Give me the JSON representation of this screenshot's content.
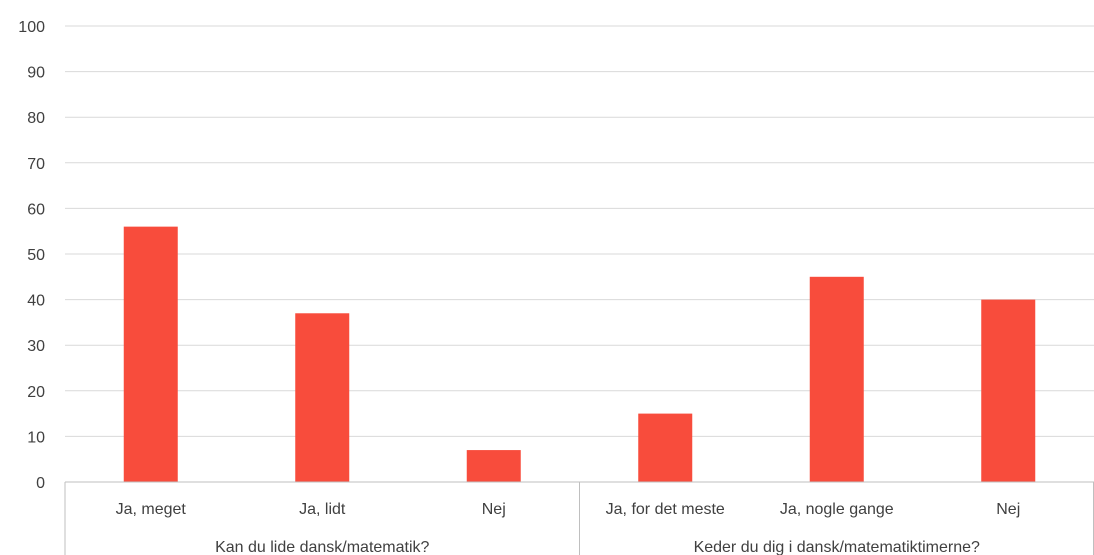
{
  "chart_data": {
    "type": "bar",
    "ylim": [
      0,
      100
    ],
    "yticks": [
      0,
      10,
      20,
      30,
      40,
      50,
      60,
      70,
      80,
      90,
      100
    ],
    "grid": true,
    "bar_color": "#f84c3c",
    "groups": [
      {
        "label": "Kan du lide dansk/matematik?",
        "categories": [
          "Ja, meget",
          "Ja, lidt",
          "Nej"
        ],
        "values": [
          56,
          37,
          7
        ]
      },
      {
        "label": "Keder du dig i dansk/matematiktimerne?",
        "categories": [
          "Ja, for det meste",
          "Ja, nogle gange",
          "Nej"
        ],
        "values": [
          15,
          45,
          40
        ]
      }
    ]
  }
}
